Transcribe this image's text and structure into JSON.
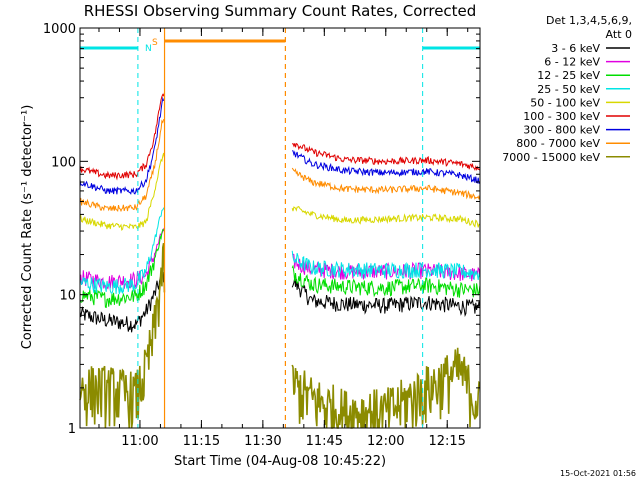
{
  "chart_data": {
    "type": "line",
    "title": "RHESSI Observing Summary Count Rates, Corrected",
    "xlabel": "Start Time (04-Aug-08 10:45:22)",
    "ylabel": "Corrected Count Rate (s⁻¹ detector⁻¹)",
    "y_scale": "log",
    "ylim": [
      1,
      1000
    ],
    "xlim": [
      "10:45:22",
      "12:23:00"
    ],
    "x_ticks": [
      "11:00",
      "11:15",
      "11:30",
      "11:45",
      "12:00",
      "12:15"
    ],
    "y_ticks": [
      1,
      10,
      100,
      1000
    ],
    "grid": false,
    "legend_title": [
      "Det 1,3,4,5,6,9,",
      "Att 0"
    ],
    "legend_position": "right",
    "footer": "15-Oct-2021 01:56",
    "markers": {
      "saa_label": "S",
      "night_label": "N",
      "night_intervals": [
        [
          "10:45:22",
          "10:59:30"
        ],
        [
          "12:09:00",
          "12:23:00"
        ]
      ],
      "saa_interval": [
        "11:06:00",
        "11:35:30"
      ],
      "night_color": "#00e5e5",
      "saa_color": "#ff8c00"
    },
    "gap": [
      "11:06:00",
      "11:37:00"
    ],
    "series": [
      {
        "name": "3 - 6 keV",
        "color": "#000000",
        "x": [
          "10:45:22",
          "10:52:00",
          "10:59:00",
          "11:01:30",
          "11:03:30",
          "11:05:30",
          "11:37:00",
          "11:42:00",
          "11:50:00",
          "12:00:00",
          "12:10:00",
          "12:18:00",
          "12:22:30"
        ],
        "values": [
          7.2,
          6.4,
          6.0,
          7.5,
          10,
          14,
          13,
          9.0,
          8.5,
          8.3,
          8.8,
          8.2,
          8.0
        ]
      },
      {
        "name": "6 - 12 keV",
        "color": "#e000e0",
        "x": [
          "10:45:22",
          "10:52:00",
          "10:59:00",
          "11:01:30",
          "11:03:30",
          "11:05:30",
          "11:37:00",
          "11:42:00",
          "11:50:00",
          "12:00:00",
          "12:10:00",
          "12:18:00",
          "12:22:30"
        ],
        "values": [
          13.5,
          12.5,
          13.0,
          14,
          20,
          30,
          18,
          15.5,
          15.0,
          15.0,
          15.2,
          14.5,
          14.0
        ]
      },
      {
        "name": "12 - 25 keV",
        "color": "#00dd00",
        "x": [
          "10:45:22",
          "10:52:00",
          "10:59:00",
          "11:01:30",
          "11:03:30",
          "11:05:30",
          "11:37:00",
          "11:42:00",
          "11:50:00",
          "12:00:00",
          "12:10:00",
          "12:18:00",
          "12:22:30"
        ],
        "values": [
          10,
          9.3,
          9.8,
          12,
          18,
          30,
          15,
          12,
          11.5,
          11.3,
          11.8,
          11.0,
          10.8
        ]
      },
      {
        "name": "25 - 50 keV",
        "color": "#00e5e5",
        "x": [
          "10:45:22",
          "10:52:00",
          "10:59:00",
          "11:01:30",
          "11:03:30",
          "11:05:30",
          "11:37:00",
          "11:42:00",
          "11:50:00",
          "12:00:00",
          "12:10:00",
          "12:18:00",
          "12:22:30"
        ],
        "values": [
          12.5,
          11.5,
          12.0,
          15,
          25,
          45,
          19,
          16.0,
          15.5,
          15.3,
          15.5,
          15.0,
          14.5
        ]
      },
      {
        "name": "50 - 100 keV",
        "color": "#d8d800",
        "x": [
          "10:45:22",
          "10:52:00",
          "10:59:00",
          "11:01:30",
          "11:03:30",
          "11:05:30",
          "11:37:00",
          "11:42:00",
          "11:50:00",
          "12:00:00",
          "12:10:00",
          "12:18:00",
          "12:22:30"
        ],
        "values": [
          37,
          33,
          32,
          35,
          60,
          110,
          45,
          40,
          36,
          37,
          38,
          37,
          34
        ]
      },
      {
        "name": "100 - 300 keV",
        "color": "#e00000",
        "x": [
          "10:45:22",
          "10:52:00",
          "10:59:00",
          "11:01:30",
          "11:03:30",
          "11:05:30",
          "11:37:00",
          "11:42:00",
          "11:50:00",
          "12:00:00",
          "12:10:00",
          "12:18:00",
          "12:22:30"
        ],
        "values": [
          88,
          78,
          80,
          95,
          150,
          330,
          140,
          118,
          103,
          100,
          102,
          96,
          90
        ]
      },
      {
        "name": "300 - 800 keV",
        "color": "#0000e0",
        "x": [
          "10:45:22",
          "10:52:00",
          "10:59:00",
          "11:01:30",
          "11:03:30",
          "11:05:30",
          "11:37:00",
          "11:42:00",
          "11:50:00",
          "12:00:00",
          "12:10:00",
          "12:18:00",
          "12:22:30"
        ],
        "values": [
          70,
          60,
          60,
          72,
          120,
          280,
          118,
          96,
          85,
          82,
          84,
          79,
          72
        ]
      },
      {
        "name": "800 - 7000 keV",
        "color": "#ff8c00",
        "x": [
          "10:45:22",
          "10:52:00",
          "10:59:00",
          "11:01:30",
          "11:03:30",
          "11:05:30",
          "11:37:00",
          "11:42:00",
          "11:50:00",
          "12:00:00",
          "12:10:00",
          "12:18:00",
          "12:22:30"
        ],
        "values": [
          50,
          44,
          45,
          55,
          90,
          200,
          85,
          70,
          62,
          61,
          63,
          58,
          54
        ]
      },
      {
        "name": "7000 - 15000 keV",
        "color": "#8b8b00",
        "x": [
          "10:45:22",
          "10:52:00",
          "10:59:00",
          "11:01:30",
          "11:03:30",
          "11:05:30",
          "11:37:00",
          "11:42:00",
          "11:50:00",
          "12:00:00",
          "12:10:00",
          "12:18:00",
          "12:22:30"
        ],
        "values": [
          1.8,
          1.8,
          1.6,
          2.5,
          5,
          15,
          2.0,
          1.5,
          1.2,
          1.2,
          1.8,
          2.5,
          1.4
        ]
      }
    ]
  }
}
